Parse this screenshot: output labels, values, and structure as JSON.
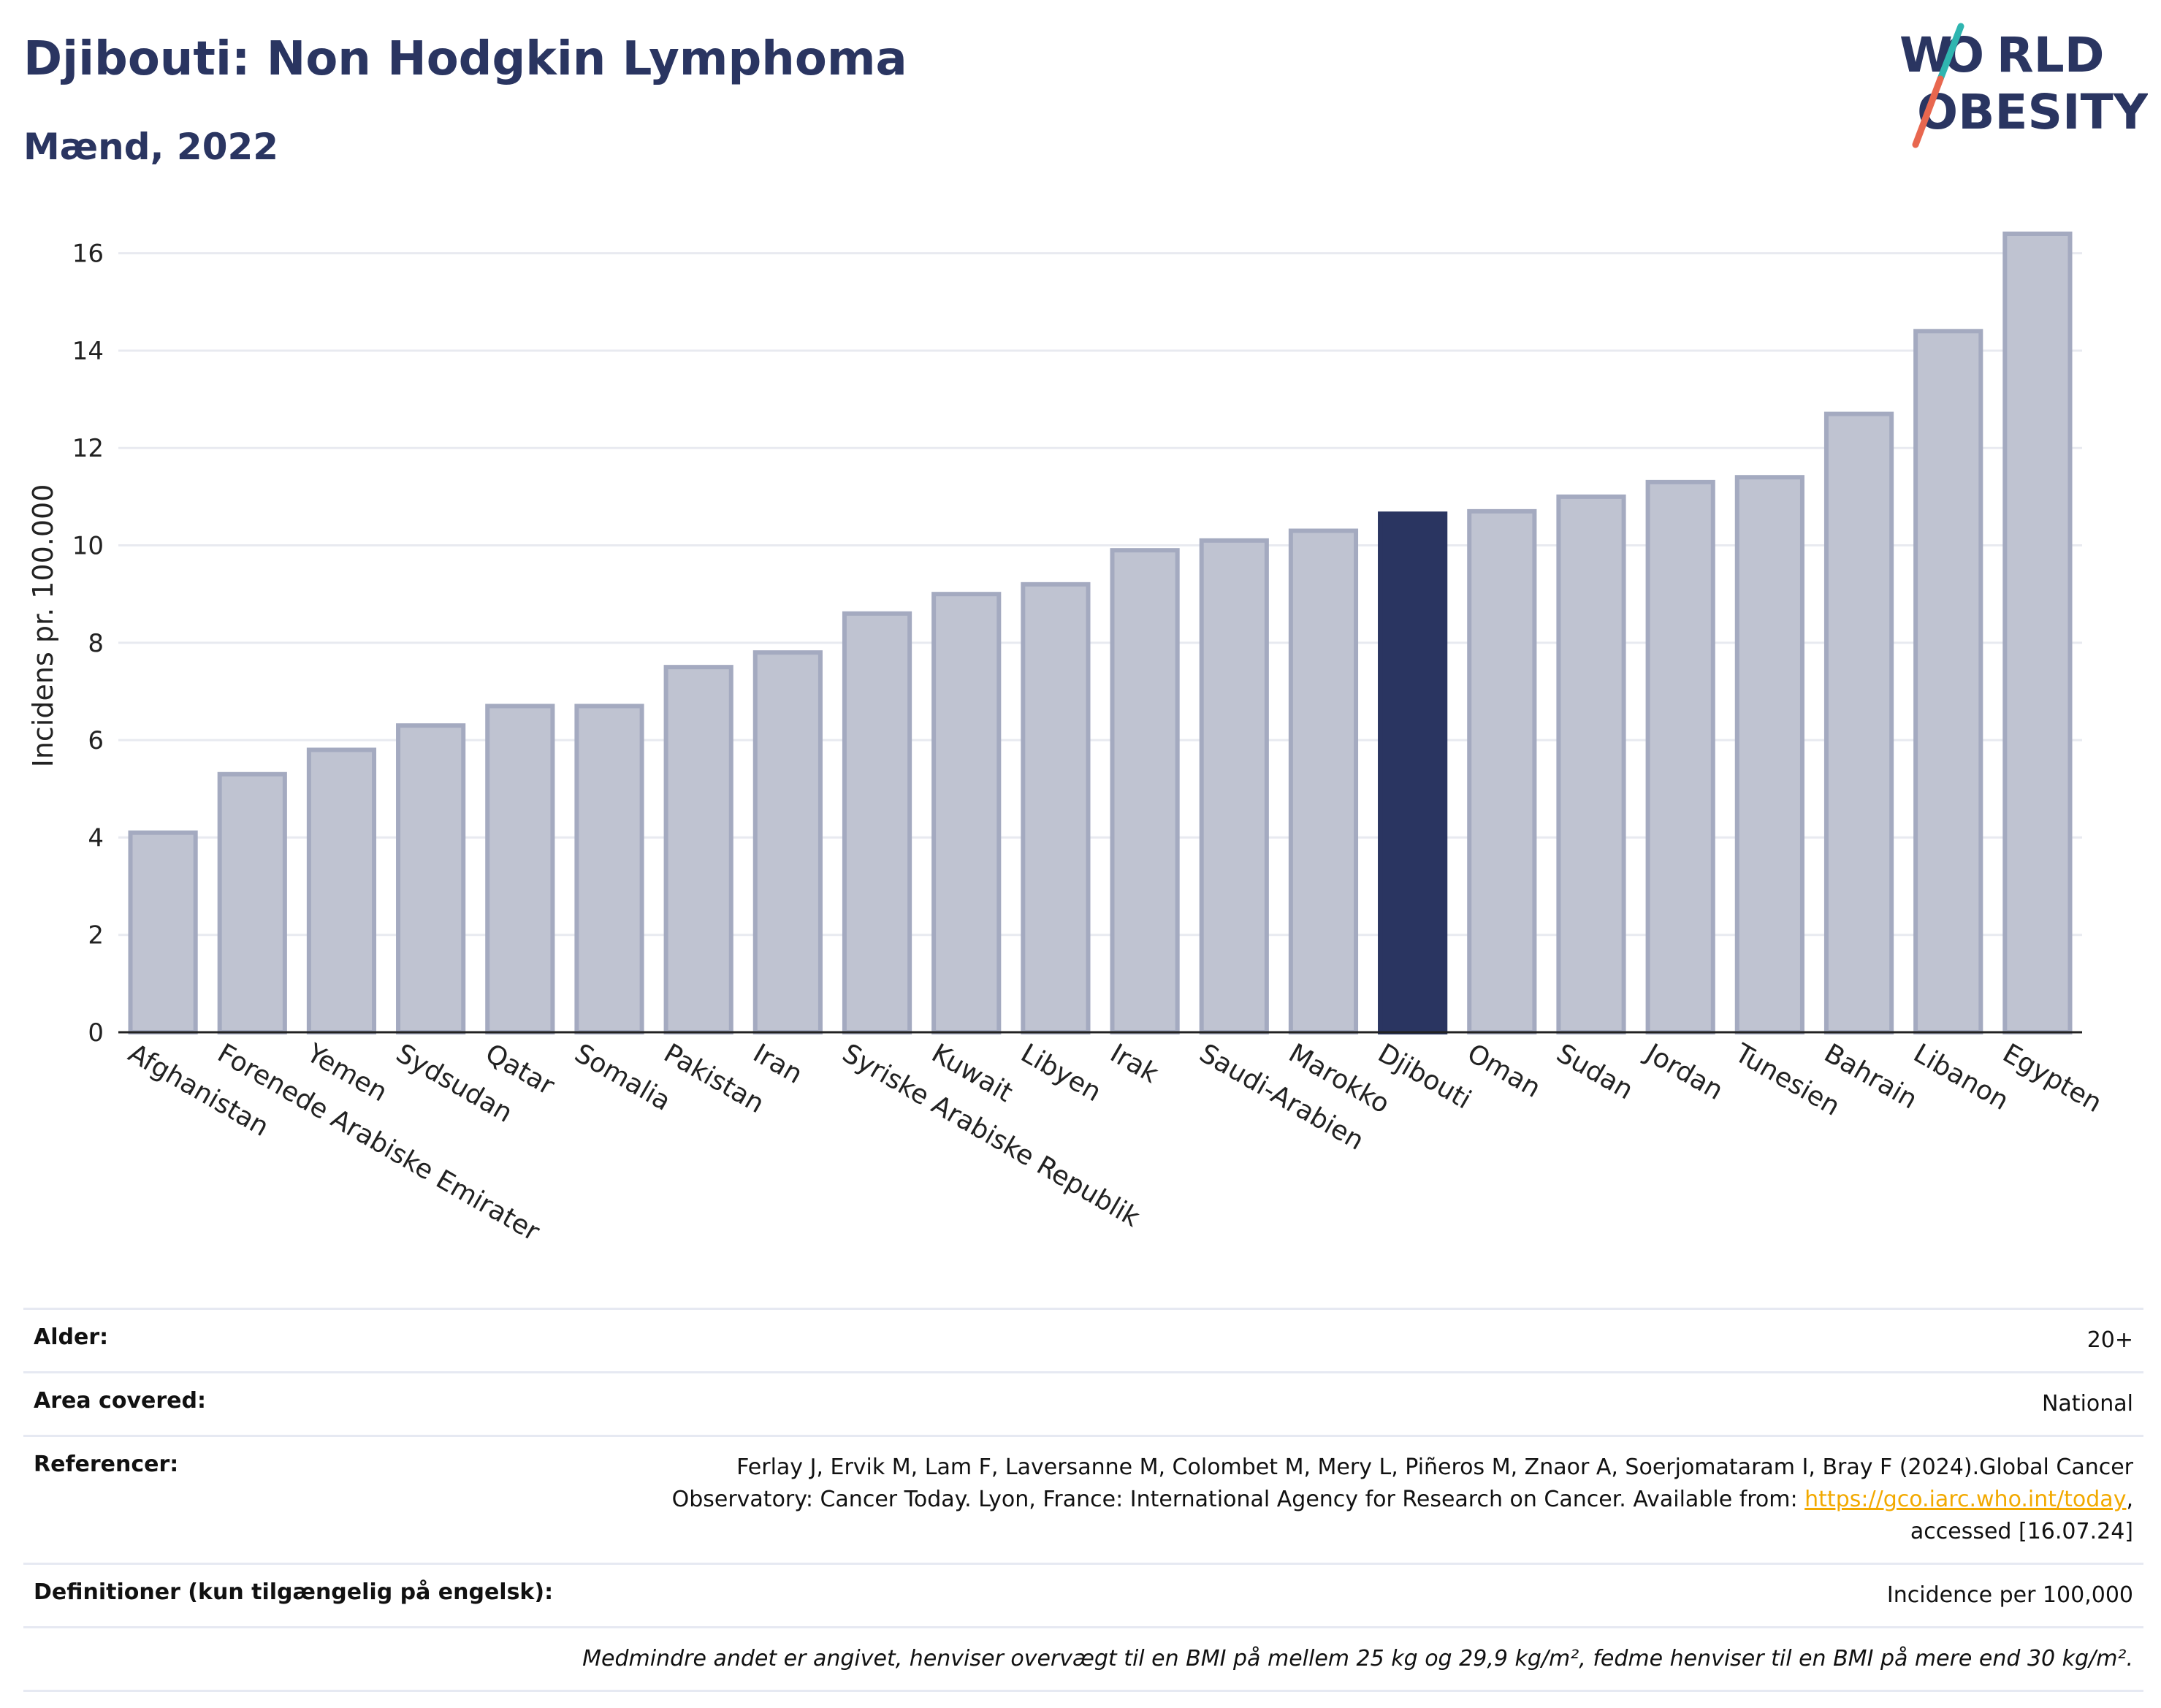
{
  "header": {
    "title": "Djibouti: Non Hodgkin Lymphoma",
    "subtitle": "Mænd, 2022"
  },
  "logo": {
    "line1_rest": "RLD",
    "line1_w": "W",
    "line2_rest": "BESITY",
    "o_char": "O",
    "colors": {
      "text": "#2a3561",
      "slash_teal": "#2fb5b0",
      "slash_red": "#e8674f"
    }
  },
  "chart_data": {
    "type": "bar",
    "ylabel": "Incidens pr. 100.000",
    "xlabel": "",
    "ylim": [
      0,
      16.7
    ],
    "yticks": [
      0,
      2,
      4,
      6,
      8,
      10,
      12,
      14,
      16
    ],
    "grid": true,
    "highlight": "Djibouti",
    "categories": [
      "Afghanistan",
      "Forenede Arabiske Emirater",
      "Yemen",
      "Sydsudan",
      "Qatar",
      "Somalia",
      "Pakistan",
      "Iran",
      "Syriske Arabiske Republik",
      "Kuwait",
      "Libyen",
      "Irak",
      "Saudi-Arabien",
      "Marokko",
      "Djibouti",
      "Oman",
      "Sudan",
      "Jordan",
      "Tunesien",
      "Bahrain",
      "Libanon",
      "Egypten"
    ],
    "values": [
      4.1,
      5.3,
      5.8,
      6.3,
      6.7,
      6.7,
      7.5,
      7.8,
      8.6,
      9.0,
      9.2,
      9.9,
      10.1,
      10.3,
      10.65,
      10.7,
      11.0,
      11.3,
      11.4,
      12.7,
      14.4,
      16.4
    ],
    "colors": {
      "bar": "#bfc3d1",
      "bar_border": "#a4aac0",
      "highlight": "#2a3561",
      "grid": "#e8eaf0",
      "axis": "#222222"
    }
  },
  "info": {
    "age_label": "Alder:",
    "age_value": "20+",
    "area_label": "Area covered:",
    "area_value": "National",
    "ref_label": "Referencer:",
    "ref_line1": "Ferlay J, Ervik M, Lam F, Laversanne M, Colombet M, Mery L, Piñeros M, Znaor A, Soerjomataram I, Bray F (2024).Global Cancer",
    "ref_line2": "Observatory: Cancer Today. Lyon, France: International Agency for Research on Cancer. Available from: ",
    "ref_link": "https://gco.iarc.who.int/today",
    "ref_line2_end": ",",
    "ref_line3": "accessed [16.07.24]",
    "def_label": "Definitioner (kun tilgængelig på engelsk):",
    "def_value": "Incidence per 100,000",
    "note": "Medmindre andet er angivet, henviser overvægt til en BMI på mellem 25 kg og 29,9 kg/m², fedme henviser til en BMI på mere end 30 kg/m²."
  }
}
